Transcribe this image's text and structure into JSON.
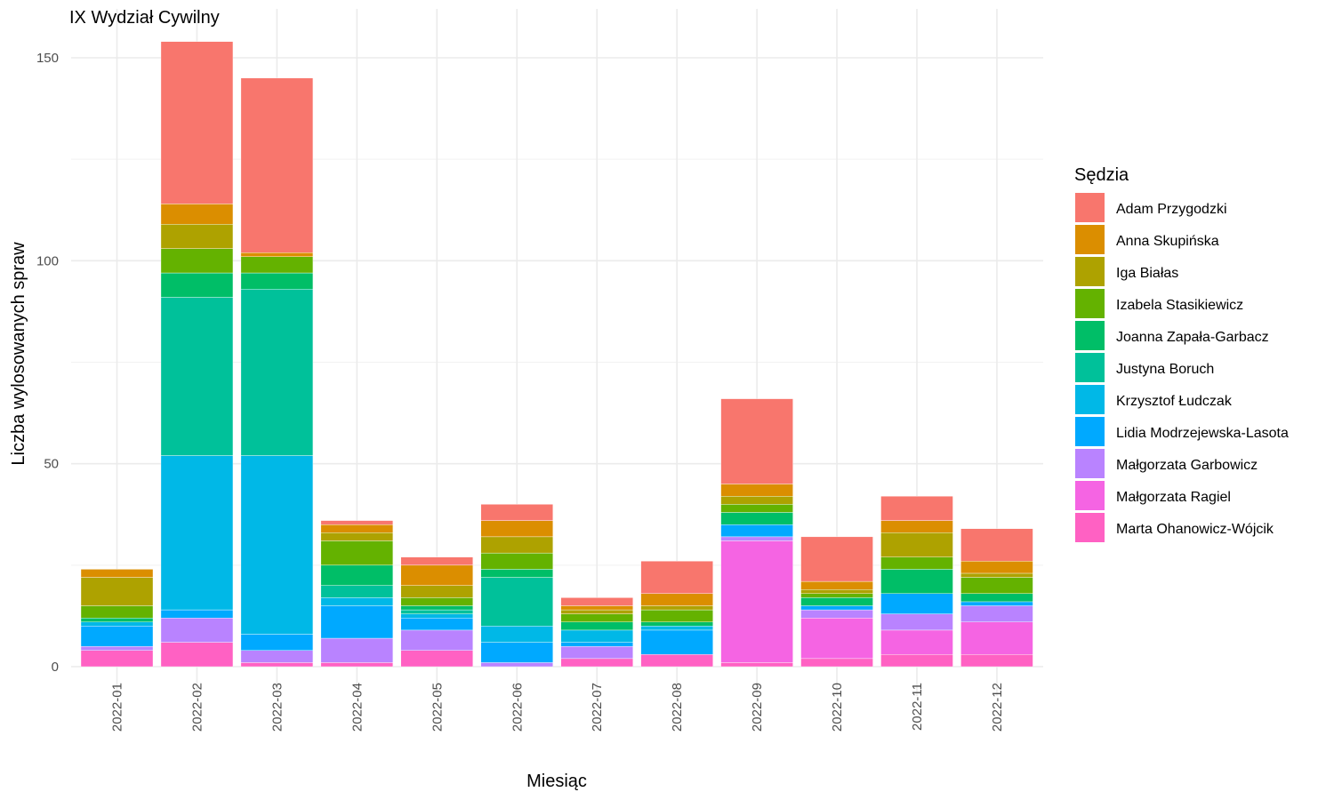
{
  "chart_data": {
    "type": "bar",
    "stacked": true,
    "title": "IX Wydział Cywilny",
    "xlabel": "Miesiąc",
    "ylabel": "Liczba wylosowanych spraw",
    "ylim": [
      0,
      155
    ],
    "yticks": [
      0,
      50,
      100,
      150
    ],
    "grid": true,
    "legend": {
      "title": "Sędzia",
      "position": "right"
    },
    "categories": [
      "2022-01",
      "2022-02",
      "2022-03",
      "2022-04",
      "2022-05",
      "2022-06",
      "2022-07",
      "2022-08",
      "2022-09",
      "2022-10",
      "2022-11",
      "2022-12"
    ],
    "series": [
      {
        "name": "Marta Ohanowicz-Wójcik",
        "color": "#FF61C3",
        "values": [
          4,
          6,
          1,
          1,
          4,
          0,
          2,
          3,
          1,
          2,
          3,
          3
        ]
      },
      {
        "name": "Małgorzata Ragiel",
        "color": "#F564E3",
        "values": [
          0,
          0,
          0,
          0,
          0,
          0,
          0,
          0,
          30,
          10,
          6,
          8
        ]
      },
      {
        "name": "Małgorzata Garbowicz",
        "color": "#B983FF",
        "values": [
          1,
          6,
          3,
          6,
          5,
          1,
          3,
          0,
          1,
          2,
          4,
          4
        ]
      },
      {
        "name": "Lidia Modrzejewska-Lasota",
        "color": "#00A9FF",
        "values": [
          5,
          2,
          4,
          8,
          3,
          5,
          1,
          6,
          3,
          1,
          5,
          1
        ]
      },
      {
        "name": "Krzysztof Łudczak",
        "color": "#00B8E7",
        "values": [
          1,
          38,
          44,
          2,
          1,
          4,
          3,
          1,
          0,
          0,
          0,
          0
        ]
      },
      {
        "name": "Justyna Boruch",
        "color": "#00C19A",
        "values": [
          0,
          39,
          41,
          3,
          1,
          12,
          0,
          0,
          0,
          0,
          0,
          0
        ]
      },
      {
        "name": "Joanna Zapała-Garbacz",
        "color": "#00BE67",
        "values": [
          1,
          6,
          4,
          5,
          1,
          2,
          2,
          1,
          3,
          2,
          6,
          2
        ]
      },
      {
        "name": "Izabela Stasikiewicz",
        "color": "#64B200",
        "values": [
          3,
          6,
          4,
          6,
          2,
          4,
          2,
          3,
          2,
          1,
          3,
          4
        ]
      },
      {
        "name": "Iga Białas",
        "color": "#AEA200",
        "values": [
          7,
          6,
          0,
          2,
          3,
          4,
          1,
          1,
          2,
          1,
          6,
          1
        ]
      },
      {
        "name": "Anna Skupińska",
        "color": "#DB8E00",
        "values": [
          2,
          5,
          1,
          2,
          5,
          4,
          1,
          3,
          3,
          2,
          3,
          3
        ]
      },
      {
        "name": "Adam Przygodzki",
        "color": "#F8766D",
        "values": [
          0,
          40,
          43,
          1,
          2,
          4,
          2,
          8,
          21,
          11,
          6,
          8
        ]
      }
    ]
  }
}
